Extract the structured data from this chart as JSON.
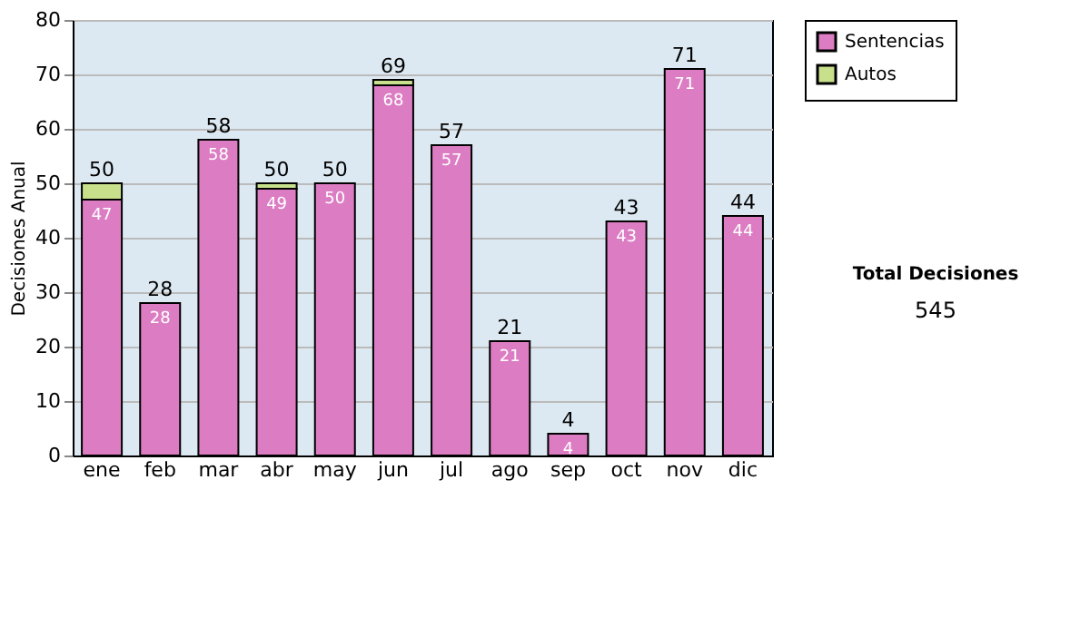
{
  "chart_data": {
    "type": "bar",
    "stacked": true,
    "ylabel": "Decisiones Anual",
    "categories": [
      "ene",
      "feb",
      "mar",
      "abr",
      "may",
      "jun",
      "jul",
      "ago",
      "sep",
      "oct",
      "nov",
      "dic"
    ],
    "series": [
      {
        "name": "Sentencias",
        "color": "#dc7dc3",
        "values": [
          47,
          28,
          58,
          49,
          50,
          68,
          57,
          21,
          4,
          43,
          71,
          44
        ],
        "value_labels": [
          "47",
          "28",
          "58",
          "49",
          "50",
          "68",
          "57",
          "21",
          "4",
          "43",
          "71",
          "44"
        ]
      },
      {
        "name": "Autos",
        "color": "#c8e08c",
        "values": [
          3,
          0,
          0,
          1,
          0,
          1,
          0,
          0,
          0,
          0,
          0,
          0
        ]
      }
    ],
    "totals": [
      "50",
      "28",
      "58",
      "50",
      "50",
      "69",
      "57",
      "21",
      "4",
      "43",
      "71",
      "44"
    ],
    "ylim": [
      0,
      80
    ],
    "yticks": [
      0,
      10,
      20,
      30,
      40,
      50,
      60,
      70,
      80
    ],
    "grid": "y",
    "legend": "right",
    "annotations": [
      "Total Decisiones",
      "545"
    ]
  }
}
